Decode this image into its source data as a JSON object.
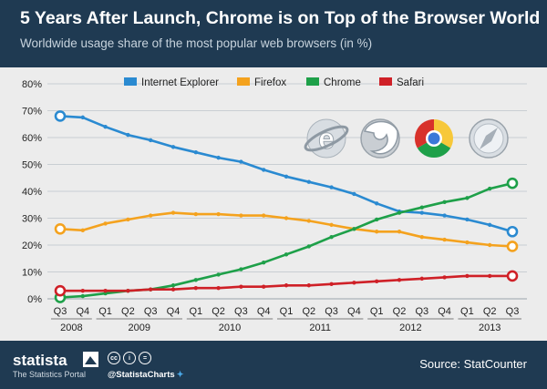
{
  "header": {
    "title": "5 Years After Launch, Chrome is on Top of the Browser World",
    "subtitle": "Worldwide usage share of the most popular web browsers (in %)"
  },
  "footer": {
    "brand": "statista",
    "tagline": "The Statistics Portal",
    "handle": "@StatistaCharts",
    "source": "Source: StatCounter",
    "cc_icons": [
      "cc",
      "i",
      "="
    ]
  },
  "icons": [
    "internet-explorer-logo",
    "firefox-logo",
    "chrome-logo",
    "safari-logo"
  ],
  "chart_data": {
    "type": "line",
    "x": [
      "Q3",
      "Q4",
      "Q1",
      "Q2",
      "Q3",
      "Q4",
      "Q1",
      "Q2",
      "Q3",
      "Q4",
      "Q1",
      "Q2",
      "Q3",
      "Q4",
      "Q1",
      "Q2",
      "Q3",
      "Q4",
      "Q1",
      "Q2",
      "Q3"
    ],
    "year_labels": [
      {
        "label": "2008",
        "start": 0,
        "end": 1
      },
      {
        "label": "2009",
        "start": 2,
        "end": 5
      },
      {
        "label": "2010",
        "start": 6,
        "end": 9
      },
      {
        "label": "2011",
        "start": 10,
        "end": 13
      },
      {
        "label": "2012",
        "start": 14,
        "end": 17
      },
      {
        "label": "2013",
        "start": 18,
        "end": 20
      }
    ],
    "ylim": [
      0,
      80
    ],
    "yticks": [
      "0%",
      "10%",
      "20%",
      "30%",
      "40%",
      "50%",
      "60%",
      "70%",
      "80%"
    ],
    "grid": true,
    "legend_position": "top",
    "series": [
      {
        "name": "Internet Explorer",
        "color": "#2a8ad1",
        "values": [
          68,
          67.5,
          64,
          61,
          59,
          56.5,
          54.5,
          52.5,
          51,
          48,
          45.5,
          43.5,
          41.5,
          39,
          35.5,
          32.5,
          32,
          31,
          29.5,
          27.5,
          25
        ]
      },
      {
        "name": "Firefox",
        "color": "#f4a21e",
        "values": [
          26,
          25.5,
          28,
          29.5,
          31,
          32,
          31.5,
          31.5,
          31,
          31,
          30,
          29,
          27.5,
          26,
          25,
          25,
          23,
          22,
          21,
          20,
          19.5
        ]
      },
      {
        "name": "Chrome",
        "color": "#1ea049",
        "values": [
          0.5,
          1,
          2,
          3,
          3.5,
          5,
          7,
          9,
          11,
          13.5,
          16.5,
          19.5,
          23,
          26,
          29.5,
          32,
          34,
          36,
          37.5,
          41,
          43
        ]
      },
      {
        "name": "Safari",
        "color": "#cf2027",
        "values": [
          3,
          3,
          3,
          3,
          3.5,
          3.5,
          4,
          4,
          4.5,
          4.5,
          5,
          5,
          5.5,
          6,
          6.5,
          7,
          7.5,
          8,
          8.5,
          8.5,
          8.5
        ]
      }
    ]
  }
}
